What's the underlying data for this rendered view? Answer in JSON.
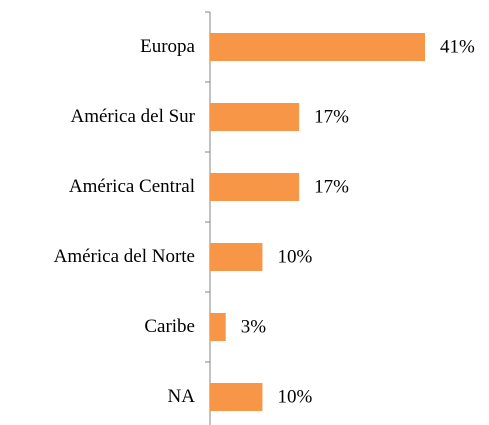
{
  "chart_data": {
    "type": "hbar",
    "categories": [
      "Europa",
      "América del Sur",
      "América Central",
      "América del Norte",
      "Caribe",
      "NA"
    ],
    "values": [
      41,
      17,
      17,
      10,
      3,
      10
    ],
    "value_labels": [
      "41%",
      "17%",
      "17%",
      "10%",
      "3%",
      "10%"
    ],
    "color": "#f79646",
    "xlim": [
      0,
      41
    ]
  }
}
